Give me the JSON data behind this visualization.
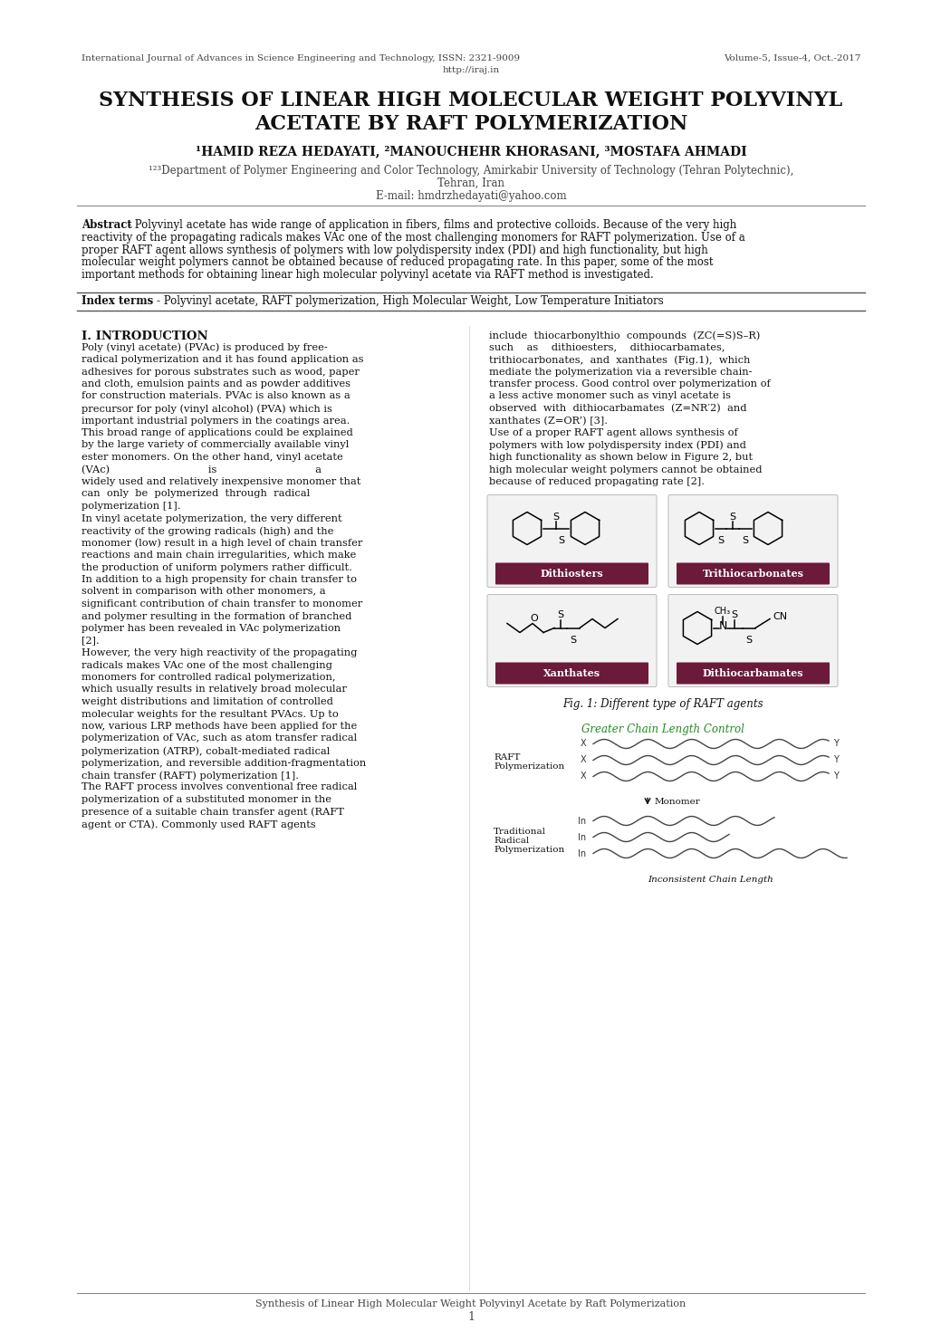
{
  "bg_color": "#ffffff",
  "journal_left": "International Journal of Advances in Science Engineering and Technology, ISSN: 2321-9009",
  "journal_center": "http://iraj.in",
  "journal_right": "Volume-5, Issue-4, Oct.-2017",
  "title_line1": "SYNTHESIS OF LINEAR HIGH MOLECULAR WEIGHT POLYVINYL",
  "title_line2": "ACETATE BY RAFT POLYMERIZATION",
  "authors": "¹HAMID REZA HEDAYATI, ²MANOUCHEHR KHORASANI, ³MOSTAFA AHMADI",
  "affil_line1": "¹²³Department of Polymer Engineering and Color Technology, Amirkabir University of Technology (Tehran Polytechnic),",
  "affil_line2": "Tehran, Iran",
  "affil_line3": "E-mail: hmdrzhedayati@yahoo.com",
  "abstract_bold": "Abstract",
  "abstract_lines": [
    "- Polyvinyl acetate has wide range of application in fibers, films and protective colloids. Because of the very high",
    "reactivity of the propagating radicals makes VAc one of the most challenging monomers for RAFT polymerization. Use of a",
    "proper RAFT agent allows synthesis of polymers with low polydispersity index (PDI) and high functionality, but high",
    "molecular weight polymers cannot be obtained because of reduced propagating rate. In this paper, some of the most",
    "important methods for obtaining linear high molecular polyvinyl acetate via RAFT method is investigated."
  ],
  "index_bold": "Index terms",
  "index_text": "- Polyvinyl acetate, RAFT polymerization, High Molecular Weight, Low Temperature Initiators",
  "intro_heading": "I. INTRODUCTION",
  "left_col_lines": [
    "",
    "Poly (vinyl acetate) (PVAc) is produced by free-",
    "radical polymerization and it has found application as",
    "adhesives for porous substrates such as wood, paper",
    "and cloth, emulsion paints and as powder additives",
    "for construction materials. PVAc is also known as a",
    "precursor for poly (vinyl alcohol) (PVA) which is",
    "important industrial polymers in the coatings area.",
    "This broad range of applications could be explained",
    "by the large variety of commercially available vinyl",
    "ester monomers. On the other hand, vinyl acetate",
    "(VAc)                              is                              a",
    "widely used and relatively inexpensive monomer that",
    "can  only  be  polymerized  through  radical",
    "polymerization [1].",
    "In vinyl acetate polymerization, the very different",
    "reactivity of the growing radicals (high) and the",
    "monomer (low) result in a high level of chain transfer",
    "reactions and main chain irregularities, which make",
    "the production of uniform polymers rather difficult.",
    "In addition to a high propensity for chain transfer to",
    "solvent in comparison with other monomers, a",
    "significant contribution of chain transfer to monomer",
    "and polymer resulting in the formation of branched",
    "polymer has been revealed in VAc polymerization",
    "[2].",
    "However, the very high reactivity of the propagating",
    "radicals makes VAc one of the most challenging",
    "monomers for controlled radical polymerization,",
    "which usually results in relatively broad molecular",
    "weight distributions and limitation of controlled",
    "molecular weights for the resultant PVAcs. Up to",
    "now, various LRP methods have been applied for the",
    "polymerization of VAc, such as atom transfer radical",
    "polymerization (ATRP), cobalt-mediated radical",
    "polymerization, and reversible addition-fragmentation",
    "chain transfer (RAFT) polymerization [1].",
    "The RAFT process involves conventional free radical",
    "polymerization of a substituted monomer in the",
    "presence of a suitable chain transfer agent (RAFT",
    "agent or CTA). Commonly used RAFT agents"
  ],
  "right_col_lines": [
    "include  thiocarbonylthio  compounds  (ZC(=S)S–R)",
    "such    as    dithioesters,    dithiocarbamates,",
    "trithiocarbonates,  and  xanthates  (Fig.1),  which",
    "mediate the polymerization via a reversible chain-",
    "transfer process. Good control over polymerization of",
    "a less active monomer such as vinyl acetate is",
    "observed  with  dithiocarbamates  (Z=NR′2)  and",
    "xanthates (Z=OR’) [3].",
    "Use of a proper RAFT agent allows synthesis of",
    "polymers with low polydispersity index (PDI) and",
    "high functionality as shown below in Figure 2, but",
    "high molecular weight polymers cannot be obtained",
    "because of reduced propagating rate [2]."
  ],
  "fig1_caption": "Fig. 1: Different type of RAFT agents",
  "fig2_greater": "Greater Chain Length Control",
  "fig2_raft_label": "RAFT\nPolymerization",
  "fig2_monomer": "Monomer",
  "fig2_trad_label": "Traditional\nRadical\nPolymerization",
  "fig2_inconsistent": "Inconsistent Chain Length",
  "footer_text": "Synthesis of Linear High Molecular Weight Polyvinyl Acetate by Raft Polymerization",
  "footer_page": "1",
  "label_bg": "#6b1a3a",
  "label_fg": "#ffffff",
  "dithiosters_label": "Dithiosters",
  "trithiocarbonates_label": "Trithiocarbonates",
  "xanthates_label": "Xanthates",
  "dithiocarbamates_label": "Dithiocarbamates"
}
